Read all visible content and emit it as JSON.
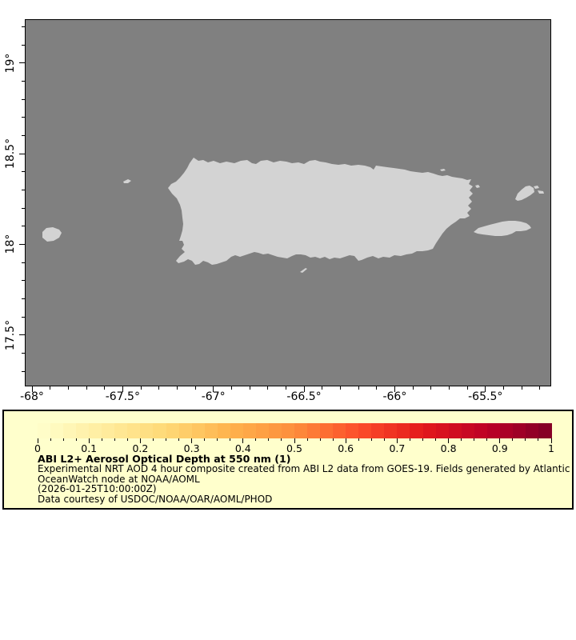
{
  "map": {
    "region": "Puerto Rico and nearby islands",
    "colors": {
      "ocean": "#808080",
      "land": "#d3d3d3",
      "frame": "#000000"
    },
    "x_axis": {
      "tick_labels": [
        "-68°",
        "-67.5°",
        "-67°",
        "-66.5°",
        "-66°",
        "-65.5°"
      ],
      "tick_values": [
        -68,
        -67.5,
        -67,
        -66.5,
        -66,
        -65.5
      ],
      "minor_step": 0.1,
      "lon_range": [
        -68.04,
        -65.14
      ]
    },
    "y_axis": {
      "tick_labels": [
        "19°",
        "18.5°",
        "18°",
        "17.5°"
      ],
      "tick_values": [
        19,
        18.5,
        18,
        17.5
      ],
      "minor_step": 0.1,
      "lat_range": [
        17.22,
        19.24
      ]
    }
  },
  "legend": {
    "background": "#ffffcc",
    "border": "#000000",
    "title": "ABI L2+ Aerosol Optical Depth at 550 nm (1)",
    "lines": [
      "Experimental NRT AOD 4 hour composite created from ABI L2 data from GOES-19. Fields generated by Atlantic",
      "OceanWatch node at NOAA/AOML",
      "(2026-01-25T10:00:00Z)",
      "Data courtesy of USDOC/NOAA/OAR/AOML/PHOD"
    ],
    "colorbar": {
      "min": 0,
      "max": 1,
      "tick_labels": [
        "0",
        "0.1",
        "0.2",
        "0.3",
        "0.4",
        "0.5",
        "0.6",
        "0.7",
        "0.8",
        "0.9",
        "1"
      ],
      "tick_values": [
        0,
        0.1,
        0.2,
        0.3,
        0.4,
        0.5,
        0.6,
        0.7,
        0.8,
        0.9,
        1
      ],
      "minor_step": 0.025,
      "segments": 40,
      "color_stops": [
        "#ffffcc",
        "#ffeda0",
        "#fed976",
        "#feb24c",
        "#fd8d3c",
        "#fc4e2a",
        "#e31a1c",
        "#bd0026",
        "#800026"
      ]
    }
  }
}
